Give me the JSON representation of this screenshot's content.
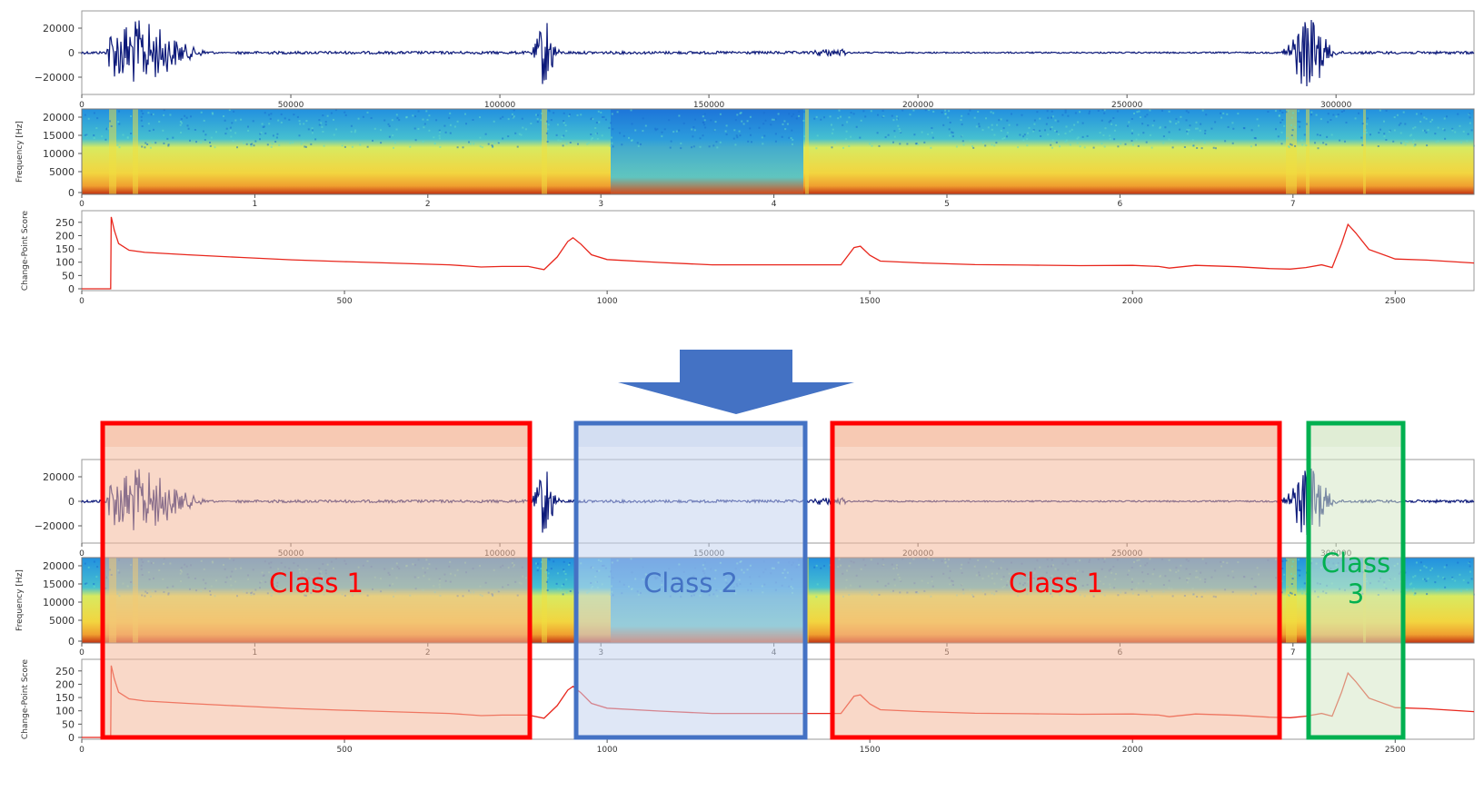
{
  "waveform": {
    "y_ticks": [
      "20000",
      "0",
      "−20000"
    ],
    "x_ticks": [
      "0",
      "50000",
      "100000",
      "150000",
      "200000",
      "250000",
      "300000"
    ],
    "colors": {
      "line": "#0d1a7a",
      "axis": "#444444"
    }
  },
  "spectrogram": {
    "ylabel": "Frequency [Hz]",
    "y_ticks": [
      "20000",
      "15000",
      "10000",
      "5000",
      "0"
    ],
    "x_ticks": [
      "0",
      "1",
      "2",
      "3",
      "4",
      "5",
      "6",
      "7"
    ],
    "colors": {
      "low": "#1f8ad8",
      "mid": "#a8e070",
      "high": "#f4c430",
      "peak": "#c83a10"
    }
  },
  "changepoint": {
    "ylabel": "Change-Point Score",
    "y_ticks": [
      "250",
      "200",
      "150",
      "100",
      "50",
      "0"
    ],
    "x_ticks": [
      "0",
      "500",
      "1000",
      "1500",
      "2000",
      "2500"
    ],
    "ylim": [
      0,
      280
    ],
    "xlim": [
      0,
      2650
    ],
    "color": "#e8261c",
    "values": [
      [
        0,
        0
      ],
      [
        55,
        0
      ],
      [
        56,
        270
      ],
      [
        62,
        220
      ],
      [
        70,
        170
      ],
      [
        90,
        145
      ],
      [
        120,
        137
      ],
      [
        200,
        128
      ],
      [
        300,
        118
      ],
      [
        400,
        109
      ],
      [
        500,
        102
      ],
      [
        600,
        96
      ],
      [
        700,
        90
      ],
      [
        760,
        82
      ],
      [
        800,
        84
      ],
      [
        850,
        84
      ],
      [
        880,
        72
      ],
      [
        905,
        120
      ],
      [
        925,
        178
      ],
      [
        935,
        192
      ],
      [
        950,
        168
      ],
      [
        970,
        128
      ],
      [
        1000,
        110
      ],
      [
        1100,
        99
      ],
      [
        1200,
        90
      ],
      [
        1300,
        90
      ],
      [
        1400,
        90
      ],
      [
        1445,
        90
      ],
      [
        1470,
        155
      ],
      [
        1482,
        160
      ],
      [
        1500,
        126
      ],
      [
        1520,
        104
      ],
      [
        1600,
        97
      ],
      [
        1700,
        91
      ],
      [
        1800,
        89
      ],
      [
        1900,
        87
      ],
      [
        2000,
        88
      ],
      [
        2050,
        84
      ],
      [
        2070,
        78
      ],
      [
        2120,
        88
      ],
      [
        2200,
        83
      ],
      [
        2260,
        76
      ],
      [
        2300,
        74
      ],
      [
        2330,
        80
      ],
      [
        2360,
        90
      ],
      [
        2380,
        80
      ],
      [
        2398,
        170
      ],
      [
        2410,
        242
      ],
      [
        2425,
        210
      ],
      [
        2450,
        148
      ],
      [
        2500,
        112
      ],
      [
        2560,
        108
      ],
      [
        2650,
        97
      ]
    ]
  },
  "arrow": {
    "color": "#4472c4"
  },
  "segments": [
    {
      "label": "Class 1",
      "color": "#ff0000",
      "fill": "#f4b89a"
    },
    {
      "label": "Class 2",
      "color": "#4472c4",
      "fill": "#c5d3ee"
    },
    {
      "label": "Class 1",
      "color": "#ff0000",
      "fill": "#f4b89a"
    },
    {
      "label": "Class\n3",
      "color": "#00b050",
      "fill": "#d6e7c7"
    }
  ]
}
